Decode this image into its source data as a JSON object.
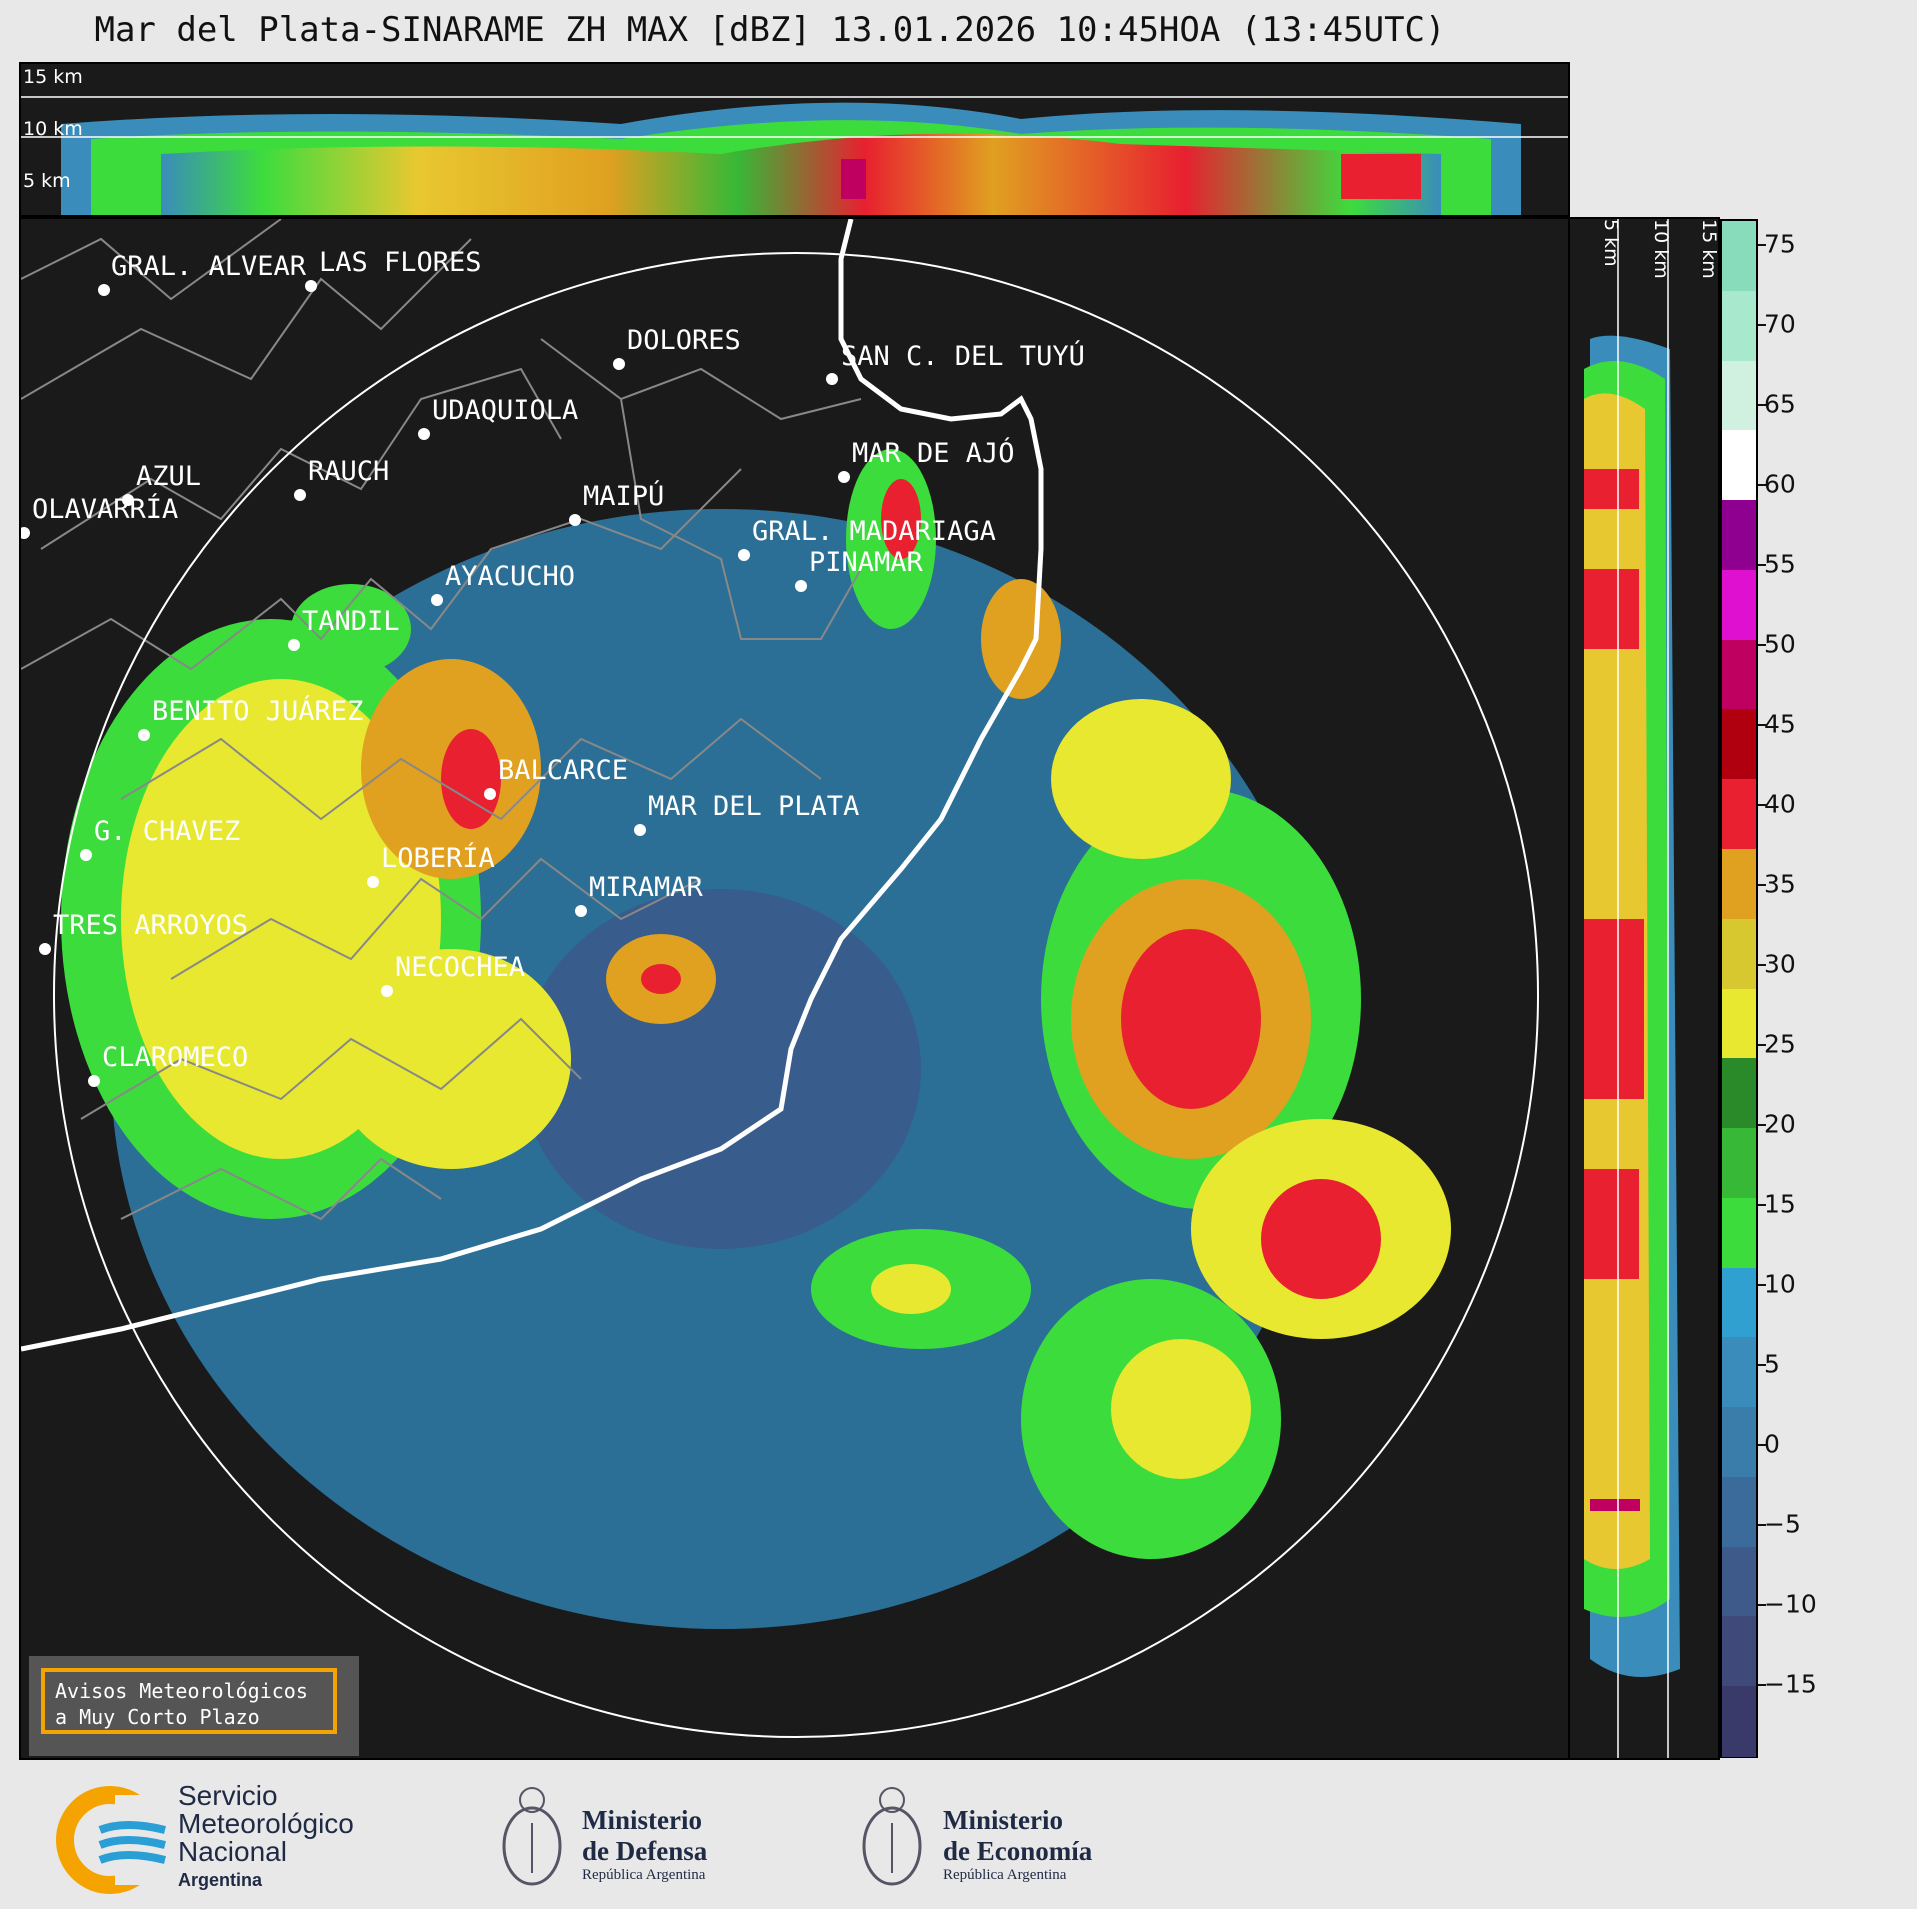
{
  "title": "Mar del Plata-SINARAME ZH MAX [dBZ] 13.01.2026 10:45HOA (13:45UTC)",
  "top_panel": {
    "height_labels": [
      "15 km",
      "10 km",
      "5 km"
    ]
  },
  "side_panel": {
    "height_labels": [
      "5 km",
      "10 km",
      "15 km"
    ]
  },
  "colorbar": {
    "ticks": [
      "75",
      "70",
      "65",
      "60",
      "55",
      "50",
      "45",
      "40",
      "35",
      "30",
      "25",
      "20",
      "15",
      "10",
      "5",
      "0",
      "−5",
      "−10",
      "−15"
    ],
    "colors": [
      "#3a3a6a",
      "#3f4a7a",
      "#3d5a8a",
      "#3a6b9a",
      "#3a7caa",
      "#3a8dba",
      "#2fa0d0",
      "#3ddc3d",
      "#37b837",
      "#2a8a2a",
      "#e8e830",
      "#d8c830",
      "#e0a020",
      "#e82030",
      "#b00010",
      "#c00060",
      "#e010d0",
      "#900090",
      "#ffffff",
      "#d0f0e0",
      "#a8e8cc",
      "#88dcbc"
    ]
  },
  "cities": [
    {
      "name": "GRAL. ALVEAR"
    },
    {
      "name": "LAS FLORES"
    },
    {
      "name": "DOLORES"
    },
    {
      "name": "SAN C. DEL TUYÚ"
    },
    {
      "name": "UDAQUIOLA"
    },
    {
      "name": "MAR DE AJÓ"
    },
    {
      "name": "AZUL"
    },
    {
      "name": "RAUCH"
    },
    {
      "name": "MAIPÚ"
    },
    {
      "name": "OLAVARRÍA"
    },
    {
      "name": "GRAL. MADARIAGA"
    },
    {
      "name": "PINAMAR"
    },
    {
      "name": "AYACUCHO"
    },
    {
      "name": "TANDIL"
    },
    {
      "name": "BENITO JUÁREZ"
    },
    {
      "name": "BALCARCE"
    },
    {
      "name": "MAR DEL PLATA"
    },
    {
      "name": "G. CHAVEZ"
    },
    {
      "name": "LOBERÍA"
    },
    {
      "name": "MIRAMAR"
    },
    {
      "name": "TRES ARROYOS"
    },
    {
      "name": "NECOCHEA"
    },
    {
      "name": "CLAROMECO"
    }
  ],
  "alert": {
    "line1": "Avisos Meteorológicos",
    "line2": "a Muy Corto Plazo"
  },
  "footer": {
    "smn": {
      "line1": "Servicio",
      "line2": "Meteorológico",
      "line3": "Nacional",
      "line4": "Argentina"
    },
    "defensa": {
      "line1": "Ministerio",
      "line2": "de Defensa",
      "line3": "República Argentina"
    },
    "economia": {
      "line1": "Ministerio",
      "line2": "de Economía",
      "line3": "República Argentina"
    }
  }
}
